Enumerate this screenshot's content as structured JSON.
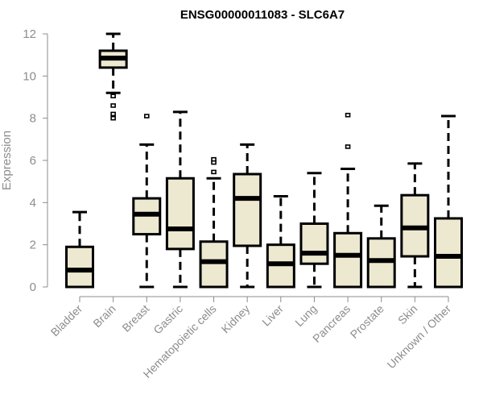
{
  "chart_data": {
    "type": "boxplot",
    "title": "ENSG00000011083 - SLC6A7",
    "xlabel": "",
    "ylabel": "Expression",
    "ylim": [
      0,
      12
    ],
    "yticks": [
      0,
      2,
      4,
      6,
      8,
      10,
      12
    ],
    "grid": false,
    "box_fill": "#ede8d0",
    "line_color": "#000000",
    "axis_color": "#8c8c8c",
    "categories": [
      "Bladder",
      "Brain",
      "Breast",
      "Gastric",
      "Hematopoietic cells",
      "Kidney",
      "Liver",
      "Lung",
      "Pancreas",
      "Prostate",
      "Skin",
      "Unknown / Other"
    ],
    "boxes": [
      {
        "category": "Bladder",
        "whisker_low": 0,
        "q1": 0,
        "median": 0.8,
        "q3": 1.9,
        "whisker_high": 3.55,
        "outliers": []
      },
      {
        "category": "Brain",
        "whisker_low": 9.2,
        "q1": 10.4,
        "median": 10.85,
        "q3": 11.2,
        "whisker_high": 12.0,
        "outliers": [
          9.05,
          8.6,
          8.2,
          8.0
        ]
      },
      {
        "category": "Breast",
        "whisker_low": 0,
        "q1": 2.5,
        "median": 3.45,
        "q3": 4.2,
        "whisker_high": 6.75,
        "outliers": [
          8.1
        ]
      },
      {
        "category": "Gastric",
        "whisker_low": 0,
        "q1": 1.8,
        "median": 2.75,
        "q3": 5.15,
        "whisker_high": 8.3,
        "outliers": []
      },
      {
        "category": "Hematopoietic cells",
        "whisker_low": 0,
        "q1": 0,
        "median": 1.2,
        "q3": 2.15,
        "whisker_high": 5.15,
        "outliers": [
          5.45,
          5.9,
          6.05
        ]
      },
      {
        "category": "Kidney",
        "whisker_low": 0,
        "q1": 1.95,
        "median": 4.2,
        "q3": 5.35,
        "whisker_high": 6.75,
        "outliers": []
      },
      {
        "category": "Liver",
        "whisker_low": 0,
        "q1": 0,
        "median": 1.1,
        "q3": 2.0,
        "whisker_high": 4.3,
        "outliers": []
      },
      {
        "category": "Lung",
        "whisker_low": 0,
        "q1": 1.1,
        "median": 1.6,
        "q3": 3.0,
        "whisker_high": 5.4,
        "outliers": []
      },
      {
        "category": "Pancreas",
        "whisker_low": 0,
        "q1": 0,
        "median": 1.5,
        "q3": 2.55,
        "whisker_high": 5.6,
        "outliers": [
          6.65,
          8.15
        ]
      },
      {
        "category": "Prostate",
        "whisker_low": 0,
        "q1": 0,
        "median": 1.25,
        "q3": 2.3,
        "whisker_high": 3.85,
        "outliers": []
      },
      {
        "category": "Skin",
        "whisker_low": 0,
        "q1": 1.45,
        "median": 2.8,
        "q3": 4.35,
        "whisker_high": 5.85,
        "outliers": []
      },
      {
        "category": "Unknown / Other",
        "whisker_low": 0,
        "q1": 0,
        "median": 1.45,
        "q3": 3.25,
        "whisker_high": 8.1,
        "outliers": []
      }
    ]
  }
}
